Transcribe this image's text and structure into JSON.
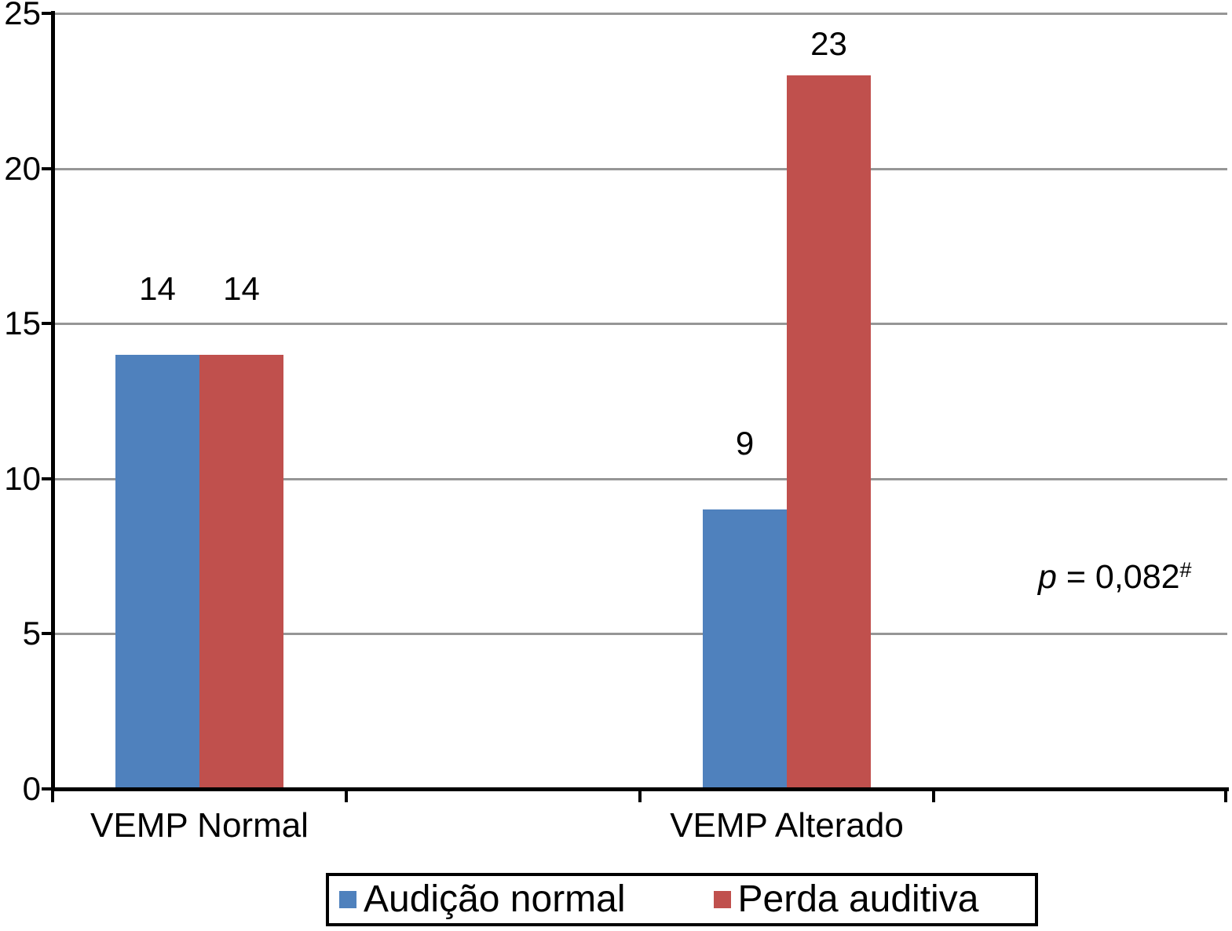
{
  "chart_data": {
    "type": "bar",
    "title": "",
    "xlabel": "",
    "ylabel": "",
    "categories": [
      "VEMP Normal",
      "VEMP Alterado"
    ],
    "series": [
      {
        "name": "Audição normal",
        "color": "#4F81BD",
        "values": [
          14,
          9
        ]
      },
      {
        "name": "Perda auditiva",
        "color": "#C0504D",
        "values": [
          14,
          23
        ]
      }
    ],
    "data_labels": true,
    "ylim": [
      0,
      25
    ],
    "yticks": [
      0,
      5,
      10,
      15,
      20,
      25
    ],
    "grid": true,
    "gridline_color": "#969696",
    "axis_color": "#000000",
    "legend": {
      "position": "bottom",
      "boxed": true,
      "entries": [
        "Audição normal",
        "Perda auditiva"
      ]
    },
    "annotation": {
      "variable": "p",
      "rest": " = 0,082",
      "superscript": "#",
      "full_text": "p = 0,082#"
    }
  }
}
